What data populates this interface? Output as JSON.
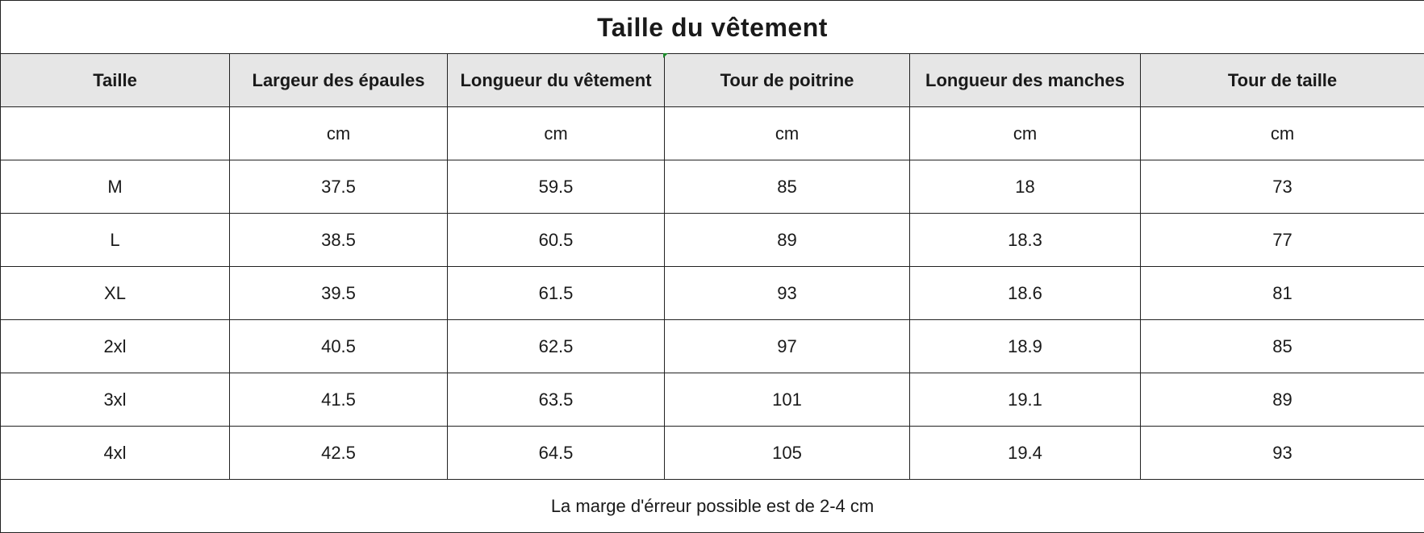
{
  "table": {
    "title": "Taille du vêtement",
    "headers": [
      "Taille",
      "Largeur des épaules",
      "Longueur du vêtement",
      "Tour de poitrine",
      "Longueur des manches",
      "Tour de taille"
    ],
    "units": [
      "",
      "cm",
      "cm",
      "cm",
      "cm",
      "cm"
    ],
    "rows": [
      [
        "M",
        "37.5",
        "59.5",
        "85",
        "18",
        "73"
      ],
      [
        "L",
        "38.5",
        "60.5",
        "89",
        "18.3",
        "77"
      ],
      [
        "XL",
        "39.5",
        "61.5",
        "93",
        "18.6",
        "81"
      ],
      [
        "2xl",
        "40.5",
        "62.5",
        "97",
        "18.9",
        "85"
      ],
      [
        "3xl",
        "41.5",
        "63.5",
        "101",
        "19.1",
        "89"
      ],
      [
        "4xl",
        "42.5",
        "64.5",
        "105",
        "19.4",
        "93"
      ]
    ],
    "footer": "La marge d'érreur possible est de 2-4 cm"
  },
  "colors": {
    "header_background": "#e6e6e6",
    "border": "#222222",
    "cell_marker": "#1a8a2a"
  }
}
